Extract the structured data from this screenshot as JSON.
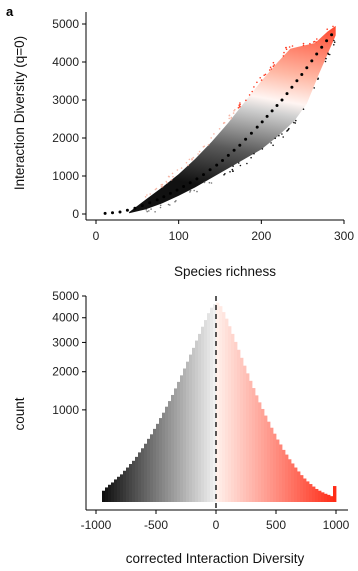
{
  "panel_label": "a",
  "chart_data": [
    {
      "type": "scatter",
      "xlabel": "Species richness",
      "ylabel": "Interaction Diversity (q=0)",
      "xlim": [
        0,
        300
      ],
      "ylim": [
        0,
        5000
      ],
      "x_ticks": [
        "0",
        "100",
        "200",
        "300"
      ],
      "y_ticks": [
        "0",
        "1000",
        "2000",
        "3000",
        "4000",
        "5000"
      ],
      "grid": false,
      "colormap": [
        "#1a1a1a",
        "#e6e6e6",
        "#fff1ec",
        "#ff2a14"
      ],
      "trend": {
        "style": "dotted",
        "color": "#000000",
        "x": [
          10,
          30,
          50,
          75,
          100,
          125,
          150,
          175,
          200,
          225,
          250,
          275,
          290
        ],
        "y": [
          15,
          55,
          170,
          380,
          650,
          960,
          1350,
          1830,
          2400,
          3000,
          3700,
          4450,
          4850
        ]
      },
      "cloud_upper_edge": {
        "x": [
          40,
          60,
          80,
          100,
          120,
          140,
          160,
          180,
          200,
          220,
          235,
          245,
          265,
          280,
          290
        ],
        "y": [
          50,
          380,
          700,
          1050,
          1450,
          1900,
          2400,
          2950,
          3500,
          4000,
          4350,
          4400,
          4500,
          4800,
          4950
        ]
      },
      "cloud_lower_edge": {
        "x": [
          40,
          60,
          80,
          100,
          120,
          140,
          160,
          180,
          200,
          220,
          240,
          255,
          270,
          290
        ],
        "y": [
          20,
          120,
          280,
          480,
          700,
          950,
          1200,
          1450,
          1700,
          2050,
          2450,
          2900,
          3700,
          4700
        ]
      }
    },
    {
      "type": "bar",
      "xlabel": "corrected Interaction Diversity",
      "ylabel": "count",
      "xlim": [
        -1000,
        1000
      ],
      "y_scale": "sqrt",
      "ylim": [
        0,
        5000
      ],
      "x_ticks": [
        "-1000",
        "-500",
        "0",
        "500",
        "1000"
      ],
      "y_ticks": [
        "1000",
        "2000",
        "3000",
        "4000",
        "5000"
      ],
      "vline": {
        "x": 0,
        "style": "dashed"
      },
      "bin_width": 25,
      "colormap": [
        "#000000",
        "#f2f2f2",
        "#fff1ec",
        "#ff2a14"
      ],
      "bins_x": [
        -950,
        -925,
        -900,
        -875,
        -850,
        -825,
        -800,
        -775,
        -750,
        -725,
        -700,
        -675,
        -650,
        -625,
        -600,
        -575,
        -550,
        -525,
        -500,
        -475,
        -450,
        -425,
        -400,
        -375,
        -350,
        -325,
        -300,
        -275,
        -250,
        -225,
        -200,
        -175,
        -150,
        -125,
        -100,
        -75,
        -50,
        -25,
        0,
        25,
        50,
        75,
        100,
        125,
        150,
        175,
        200,
        225,
        250,
        275,
        300,
        325,
        350,
        375,
        400,
        425,
        450,
        475,
        500,
        525,
        550,
        575,
        600,
        625,
        650,
        675,
        700,
        725,
        750,
        775,
        800,
        825,
        850,
        875,
        900,
        925,
        950,
        975
      ],
      "values": [
        15,
        25,
        35,
        45,
        60,
        75,
        90,
        115,
        140,
        170,
        200,
        240,
        290,
        340,
        400,
        470,
        540,
        630,
        720,
        830,
        940,
        1070,
        1200,
        1350,
        1520,
        1700,
        1890,
        2100,
        2320,
        2560,
        2800,
        3070,
        3330,
        3620,
        3900,
        4200,
        4450,
        4620,
        4680,
        4520,
        4250,
        3960,
        3640,
        3330,
        3020,
        2730,
        2450,
        2190,
        1950,
        1730,
        1530,
        1340,
        1170,
        1020,
        880,
        760,
        650,
        550,
        460,
        390,
        320,
        265,
        215,
        175,
        140,
        110,
        85,
        65,
        50,
        38,
        28,
        20,
        15,
        11,
        8,
        6,
        4,
        30
      ]
    }
  ]
}
